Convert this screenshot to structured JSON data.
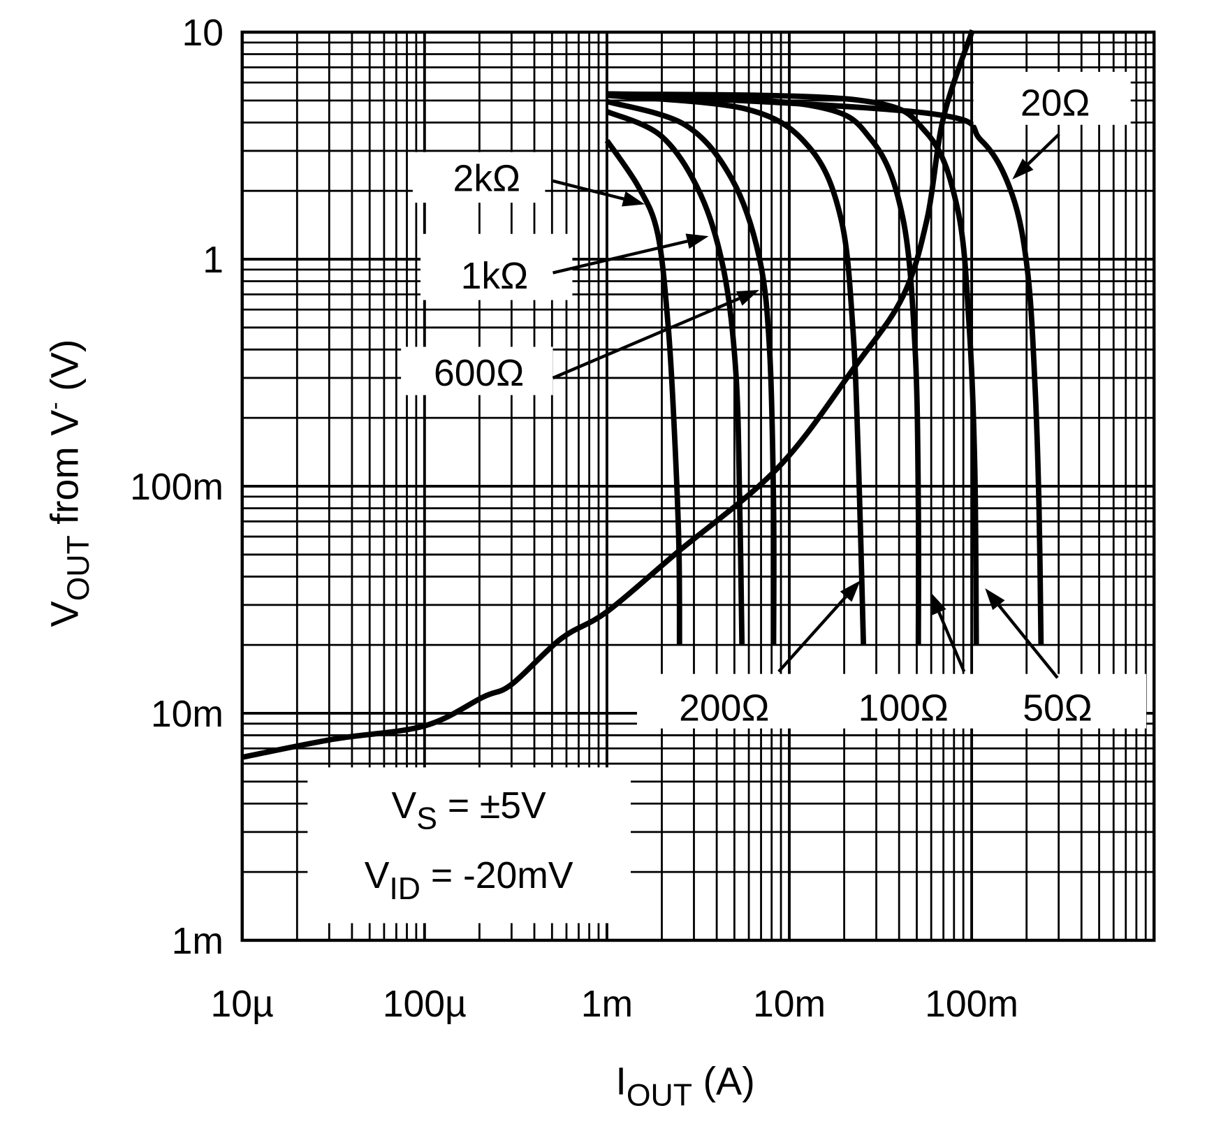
{
  "chart_data": {
    "type": "line",
    "title": "",
    "xscale": "log",
    "yscale": "log",
    "xlim": [
      1e-05,
      1
    ],
    "ylim": [
      0.001,
      10
    ],
    "grid": true,
    "xlabel": {
      "main": "I",
      "sub": "OUT",
      "rest": " (A)"
    },
    "ylabel": {
      "main": "V",
      "sub": "OUT",
      "rest": " from V",
      "sup": "-",
      "unit": " (V)"
    },
    "xticks": [
      {
        "value": 1e-05,
        "label": "10µ"
      },
      {
        "value": 0.0001,
        "label": "100µ"
      },
      {
        "value": 0.001,
        "label": "1m"
      },
      {
        "value": 0.01,
        "label": "10m"
      },
      {
        "value": 0.1,
        "label": "100m"
      }
    ],
    "yticks": [
      {
        "value": 10,
        "label": "10"
      },
      {
        "value": 1,
        "label": "1"
      },
      {
        "value": 0.1,
        "label": "100m"
      },
      {
        "value": 0.01,
        "label": "10m"
      },
      {
        "value": 0.001,
        "label": "1m"
      }
    ],
    "colors": {
      "line": "#000000",
      "grid": "#000000",
      "background": "#ffffff"
    },
    "series": [
      {
        "name": "2kΩ",
        "x": [
          0.001,
          0.00149,
          0.0019,
          0.00217,
          0.00234,
          0.00248,
          0.0025
        ],
        "y": [
          3.33,
          2.08,
          1.29,
          0.5,
          0.179,
          0.055,
          0.02
        ]
      },
      {
        "name": "1kΩ",
        "x": [
          0.001,
          0.002,
          0.00327,
          0.0044,
          0.0051,
          0.00535,
          0.0055
        ],
        "y": [
          4.47,
          3.47,
          1.92,
          0.87,
          0.312,
          0.081,
          0.02
        ]
      },
      {
        "name": "600Ω",
        "x": [
          0.001,
          0.00269,
          0.00485,
          0.00684,
          0.0078,
          0.0082,
          0.0082
        ],
        "y": [
          4.95,
          3.9,
          2.25,
          1.02,
          0.395,
          0.081,
          0.02
        ]
      },
      {
        "name": "200Ω",
        "x": [
          0.001,
          0.0059,
          0.013,
          0.0192,
          0.0223,
          0.024,
          0.0255
        ],
        "y": [
          5.27,
          4.57,
          3.08,
          1.51,
          0.5,
          0.121,
          0.02
        ]
      },
      {
        "name": "100Ω",
        "x": [
          0.001,
          0.013,
          0.0284,
          0.042,
          0.049,
          0.051,
          0.051
        ],
        "y": [
          5.35,
          4.76,
          3.33,
          1.51,
          0.395,
          0.081,
          0.02
        ]
      },
      {
        "name": "50Ω",
        "x": [
          0.001,
          0.0234,
          0.0566,
          0.084,
          0.097,
          0.104,
          0.106
        ],
        "y": [
          5.35,
          5.03,
          3.6,
          1.64,
          0.5,
          0.121,
          0.02
        ]
      },
      {
        "name": "20Ω",
        "x": [
          0.001,
          0.0566,
          0.113,
          0.167,
          0.203,
          0.223,
          0.234,
          0.24
        ],
        "y": [
          5.35,
          4.4,
          3.33,
          1.92,
          0.87,
          0.266,
          0.081,
          0.02
        ]
      },
      {
        "x": [
          1e-05,
          3.2e-05,
          0.0001,
          0.00021,
          0.0003,
          0.00056,
          0.001,
          0.0024,
          0.0087,
          0.023,
          0.042,
          0.057,
          0.07,
          0.101
        ],
        "y": [
          0.0064,
          0.0077,
          0.0088,
          0.0118,
          0.0134,
          0.0213,
          0.028,
          0.0507,
          0.121,
          0.338,
          0.687,
          1.51,
          4.2,
          10.2
        ]
      }
    ],
    "annotations": {
      "conditions": [
        {
          "main": "V",
          "sub": "S",
          "rest": " = ±5V"
        },
        {
          "main": "V",
          "sub": "ID",
          "rest": " = -20mV"
        }
      ]
    }
  }
}
